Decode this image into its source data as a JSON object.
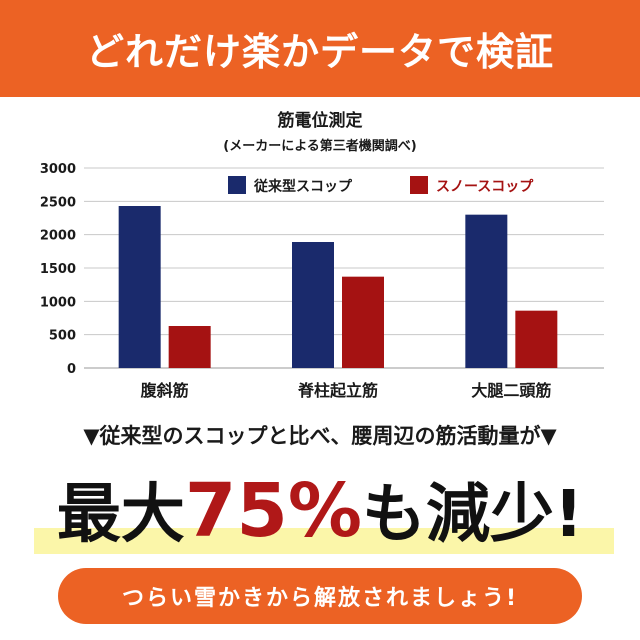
{
  "banner": {
    "title": "どれだけ楽かデータで検証"
  },
  "chart_data": {
    "type": "bar",
    "title": "筋電位測定",
    "subtitle": "(メーカーによる第三者機関調べ)",
    "categories": [
      "腹斜筋",
      "脊柱起立筋",
      "大腿二頭筋"
    ],
    "series": [
      {
        "name": "従来型スコップ",
        "values": [
          2430,
          1890,
          2300
        ],
        "color": "#1a2a6c"
      },
      {
        "name": "スノースコップ",
        "values": [
          630,
          1370,
          860
        ],
        "color": "#a51212"
      }
    ],
    "ylim": [
      0,
      3000
    ],
    "yticks": [
      "0",
      "500",
      "1000",
      "1500",
      "2000",
      "2500",
      "3000"
    ],
    "grid": true,
    "legend": "top"
  },
  "subhead": "▼従来型のスコップと比べ、腰周辺の筋活動量が▼",
  "headline": {
    "prefix": "最大",
    "percent": "75%",
    "suffix": "も減少!"
  },
  "pill": "つらい雪かきから解放されましょう!"
}
